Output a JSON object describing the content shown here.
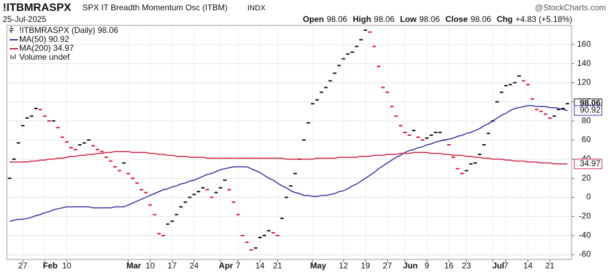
{
  "header": {
    "symbol": "!ITBMRASPX",
    "name": "SPX IT Breadth Momentum Osc (ITBM)",
    "exchange": "INDX",
    "brand": "@StockCharts.com",
    "date": "25-Jul-2025",
    "stats": [
      {
        "label": "Open",
        "value": "98.06"
      },
      {
        "label": "High",
        "value": "98.06"
      },
      {
        "label": "Low",
        "value": "98.06"
      },
      {
        "label": "Close",
        "value": "98.06"
      },
      {
        "label": "Chg",
        "value": "+4.83 (+5.18%)"
      }
    ]
  },
  "chart_data": {
    "type": "line",
    "categories": [
      null,
      null,
      null,
      "27",
      null,
      null,
      null,
      null,
      "Feb",
      null,
      null,
      null,
      null,
      "10",
      null,
      null,
      null,
      null,
      null,
      null,
      null,
      null,
      null,
      null,
      null,
      null,
      null,
      "Mar",
      null,
      null,
      null,
      null,
      "10",
      null,
      null,
      null,
      null,
      "17",
      null,
      null,
      null,
      null,
      "24",
      null,
      null,
      null,
      null,
      null,
      "Apr",
      null,
      null,
      null,
      "7",
      null,
      null,
      null,
      null,
      "14",
      null,
      null,
      null,
      "21",
      null,
      null,
      null,
      null,
      null,
      null,
      null,
      "May",
      null,
      null,
      null,
      null,
      null,
      null,
      "12",
      null,
      null,
      null,
      null,
      "19",
      null,
      null,
      null,
      null,
      "27",
      null,
      null,
      null,
      "Jun",
      null,
      null,
      null,
      null,
      "9",
      null,
      null,
      null,
      null,
      "16",
      null,
      null,
      null,
      "23",
      null,
      null,
      null,
      null,
      null,
      "Jul",
      null,
      null,
      "7",
      null,
      null,
      null,
      null,
      "14",
      null,
      null,
      null,
      null,
      "21",
      null,
      null,
      null,
      null
    ],
    "ylim": [
      -65,
      180
    ],
    "yticks": [
      -60,
      -40,
      -20,
      0,
      20,
      40,
      60,
      80,
      100,
      120,
      140,
      160
    ],
    "grid": true,
    "series": [
      {
        "name": "!ITBMRASPX (Daily) 98.06",
        "style": "dash",
        "up_color": "#111111",
        "down_color": "#e0102a",
        "last_label": "98.06",
        "values": [
          20,
          40,
          57,
          75,
          83,
          85,
          93,
          92,
          85,
          80,
          80,
          73,
          63,
          58,
          52,
          50,
          55,
          57,
          60,
          54,
          50,
          48,
          42,
          38,
          32,
          28,
          36,
          25,
          20,
          15,
          8,
          5,
          -8,
          -18,
          -38,
          -40,
          -28,
          -25,
          -18,
          -10,
          -5,
          0,
          3,
          6,
          10,
          8,
          0,
          5,
          10,
          18,
          8,
          -5,
          -18,
          -40,
          -47,
          -55,
          -53,
          -42,
          -40,
          -35,
          -37,
          -40,
          -22,
          0,
          12,
          25,
          40,
          60,
          78,
          98,
          102,
          110,
          115,
          122,
          130,
          138,
          145,
          150,
          152,
          158,
          165,
          175,
          173,
          158,
          137,
          115,
          110,
          95,
          85,
          75,
          68,
          65,
          70,
          63,
          60,
          62,
          65,
          68,
          68,
          60,
          55,
          42,
          30,
          25,
          28,
          35,
          36,
          45,
          55,
          67,
          80,
          100,
          110,
          117,
          118,
          120,
          127,
          122,
          118,
          103,
          92,
          90,
          87,
          83,
          85,
          92,
          93,
          98.06
        ]
      },
      {
        "name": "MA(50) 90.92",
        "style": "line",
        "color": "#33339a",
        "last_label": "90.92",
        "values": [
          -25,
          -24,
          -23,
          -23,
          -22,
          -21,
          -19,
          -18,
          -16,
          -15,
          -13,
          -12,
          -11,
          -10,
          -10,
          -10,
          -10,
          -10,
          -10,
          -11,
          -11,
          -11,
          -11,
          -11,
          -10,
          -10,
          -10,
          -8,
          -6,
          -4,
          -2,
          0,
          2,
          4,
          6,
          8,
          9,
          11,
          12,
          14,
          15,
          17,
          18,
          20,
          22,
          24,
          25,
          27,
          29,
          30,
          31,
          32,
          32,
          32,
          32,
          30,
          28,
          26,
          23,
          20,
          18,
          15,
          12,
          10,
          7,
          5,
          4,
          2,
          2,
          1,
          1,
          2,
          2,
          3,
          4,
          6,
          7,
          9,
          12,
          14,
          17,
          20,
          23,
          26,
          30,
          33,
          36,
          39,
          42,
          44,
          47,
          49,
          50,
          52,
          53,
          55,
          56,
          58,
          59,
          60,
          61,
          62,
          64,
          65,
          67,
          68,
          70,
          72,
          75,
          77,
          80,
          83,
          86,
          88,
          91,
          93,
          94,
          95,
          96,
          96,
          95,
          95,
          95,
          94,
          94,
          93,
          92,
          90.92
        ]
      },
      {
        "name": "MA(200) 34.97",
        "style": "line",
        "color": "#cc2244",
        "last_label": "34.97",
        "values": [
          37,
          37,
          37,
          37,
          37,
          38,
          38,
          39,
          39,
          40,
          40,
          41,
          41,
          42,
          43,
          43,
          44,
          44,
          45,
          45,
          46,
          46,
          47,
          47,
          48,
          48,
          48,
          48,
          47,
          47,
          47,
          47,
          46,
          46,
          45,
          45,
          44,
          44,
          43,
          43,
          43,
          42,
          42,
          42,
          42,
          41,
          41,
          41,
          41,
          41,
          41,
          41,
          41,
          41,
          41,
          41,
          41,
          41,
          41,
          41,
          41,
          41,
          41,
          40,
          40,
          40,
          40,
          40,
          40,
          40,
          41,
          41,
          41,
          41,
          41,
          42,
          42,
          42,
          42,
          42,
          43,
          43,
          43,
          44,
          44,
          44,
          45,
          45,
          45,
          46,
          46,
          46,
          47,
          47,
          47,
          47,
          46,
          46,
          46,
          45,
          45,
          44,
          44,
          44,
          43,
          43,
          42,
          42,
          41,
          41,
          40,
          40,
          40,
          39,
          39,
          38,
          38,
          38,
          37,
          37,
          37,
          36,
          36,
          36,
          35,
          35,
          35,
          34.97
        ]
      }
    ],
    "volume_label": "Volume undef"
  }
}
